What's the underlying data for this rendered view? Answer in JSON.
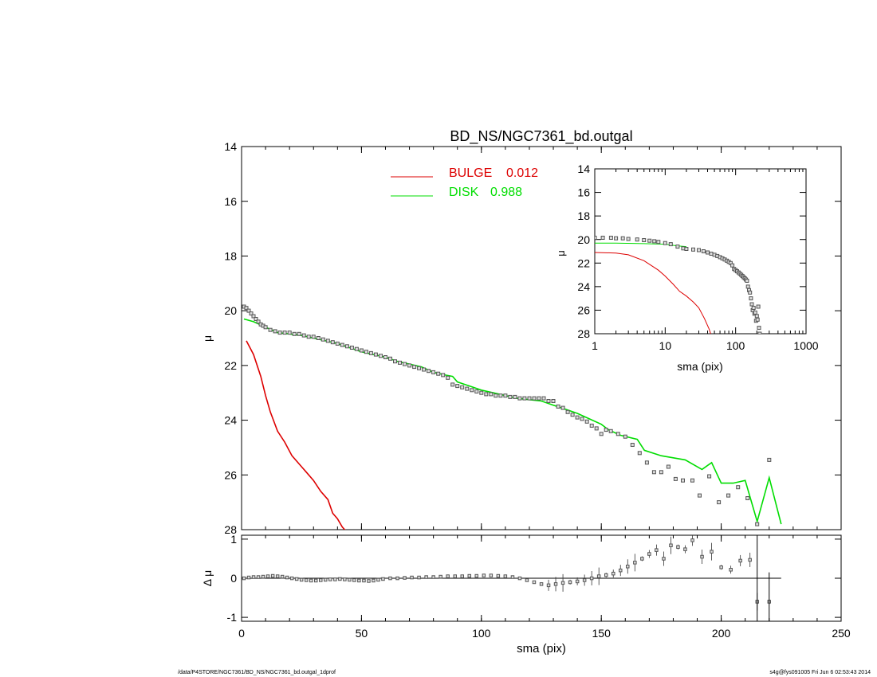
{
  "chart_data": [
    {
      "id": "main",
      "type": "scatter",
      "title": "BD_NS/NGC7361_bd.outgal",
      "xlabel": "",
      "ylabel": "μ",
      "xlim": [
        0,
        250
      ],
      "ylim": [
        28,
        14
      ],
      "y_inverted": true,
      "yticks": [
        14,
        16,
        18,
        20,
        22,
        24,
        26,
        28
      ],
      "xticks": [
        0,
        50,
        100,
        150,
        200,
        250
      ],
      "legend": {
        "placement": "top-center",
        "entries": [
          {
            "label": "BULGE",
            "value": "0.012",
            "color": "#dd0000"
          },
          {
            "label": "DISK",
            "value": "0.988",
            "color": "#00dd00"
          }
        ]
      },
      "series": [
        {
          "name": "BULGE",
          "kind": "line",
          "color": "#dd0000",
          "x": [
            2,
            5,
            8,
            10,
            12,
            15,
            18,
            21,
            24,
            27,
            30,
            33,
            36,
            38,
            40,
            42,
            44,
            46
          ],
          "y": [
            21.1,
            21.6,
            22.4,
            23.1,
            23.7,
            24.4,
            24.8,
            25.3,
            25.6,
            25.9,
            26.2,
            26.6,
            26.9,
            27.4,
            27.6,
            27.9,
            28.1,
            28.3
          ]
        },
        {
          "name": "DISK",
          "kind": "line",
          "color": "#00dd00",
          "x": [
            1,
            5,
            10,
            15,
            20,
            25,
            30,
            35,
            40,
            45,
            50,
            55,
            60,
            65,
            70,
            75,
            80,
            85,
            88,
            90,
            95,
            100,
            105,
            110,
            115,
            120,
            125,
            130,
            135,
            140,
            145,
            150,
            153,
            158,
            165,
            168,
            175,
            185,
            192,
            196,
            200,
            205,
            210,
            215,
            220,
            225
          ],
          "y": [
            20.3,
            20.4,
            20.6,
            20.8,
            20.85,
            20.9,
            21.0,
            21.1,
            21.2,
            21.35,
            21.5,
            21.6,
            21.7,
            21.85,
            21.95,
            22.05,
            22.25,
            22.35,
            22.4,
            22.6,
            22.75,
            22.9,
            23.0,
            23.1,
            23.2,
            23.25,
            23.3,
            23.45,
            23.6,
            23.75,
            23.95,
            24.15,
            24.35,
            24.55,
            24.7,
            25.1,
            25.3,
            25.45,
            25.8,
            25.55,
            26.3,
            26.3,
            26.2,
            27.7,
            26.1,
            27.8
          ]
        },
        {
          "name": "data",
          "kind": "points",
          "color": "#555555",
          "x": [
            1,
            2,
            3,
            4,
            5,
            6,
            7,
            8,
            9,
            10,
            12,
            14,
            16,
            18,
            20,
            22,
            24,
            26,
            28,
            30,
            32,
            34,
            36,
            38,
            40,
            42,
            44,
            46,
            48,
            50,
            52,
            54,
            56,
            58,
            60,
            62,
            64,
            66,
            68,
            70,
            72,
            74,
            76,
            78,
            80,
            82,
            84,
            86,
            88,
            90,
            92,
            94,
            96,
            98,
            100,
            102,
            104,
            106,
            108,
            110,
            112,
            114,
            116,
            118,
            120,
            122,
            124,
            126,
            128,
            130,
            132,
            134,
            136,
            138,
            140,
            142,
            144,
            146,
            148,
            150,
            152,
            154,
            157,
            160,
            163,
            166,
            169,
            172,
            175,
            178,
            181,
            184,
            188,
            191,
            195,
            199,
            203,
            207,
            211,
            215,
            220
          ],
          "y": [
            19.85,
            19.9,
            20.0,
            20.1,
            20.2,
            20.3,
            20.4,
            20.5,
            20.55,
            20.6,
            20.7,
            20.75,
            20.8,
            20.8,
            20.8,
            20.85,
            20.85,
            20.9,
            20.95,
            20.95,
            21.0,
            21.05,
            21.1,
            21.15,
            21.2,
            21.25,
            21.3,
            21.35,
            21.4,
            21.45,
            21.5,
            21.55,
            21.6,
            21.65,
            21.7,
            21.75,
            21.85,
            21.9,
            21.95,
            22.0,
            22.05,
            22.1,
            22.15,
            22.2,
            22.25,
            22.3,
            22.35,
            22.45,
            22.7,
            22.75,
            22.8,
            22.85,
            22.9,
            22.95,
            23.0,
            23.05,
            23.05,
            23.1,
            23.1,
            23.1,
            23.15,
            23.15,
            23.2,
            23.2,
            23.2,
            23.2,
            23.2,
            23.2,
            23.3,
            23.3,
            23.5,
            23.55,
            23.7,
            23.8,
            23.9,
            23.95,
            24.05,
            24.2,
            24.3,
            24.5,
            24.35,
            24.4,
            24.5,
            24.6,
            24.9,
            25.2,
            25.55,
            25.9,
            25.9,
            25.7,
            26.15,
            26.2,
            26.2,
            26.75,
            26.05,
            27.0,
            26.75,
            26.45,
            26.85,
            27.8,
            25.45
          ]
        }
      ]
    },
    {
      "id": "inset",
      "type": "scatter",
      "xlabel": "sma (pix)",
      "ylabel": "μ",
      "xscale": "log",
      "xlim": [
        1,
        1000
      ],
      "ylim": [
        28,
        14
      ],
      "y_inverted": true,
      "yticks": [
        14,
        16,
        18,
        20,
        22,
        24,
        26,
        28
      ],
      "xticks": [
        1,
        10,
        100,
        1000
      ],
      "series": [
        {
          "name": "BULGE",
          "kind": "line",
          "color": "#dd0000",
          "x": [
            1,
            2,
            3,
            5,
            8,
            10,
            13,
            16,
            20,
            25,
            30,
            36,
            42,
            46
          ],
          "y": [
            21.1,
            21.15,
            21.3,
            21.8,
            22.6,
            23.1,
            23.8,
            24.4,
            24.8,
            25.3,
            25.8,
            26.7,
            27.6,
            28.3
          ]
        },
        {
          "name": "DISK",
          "kind": "line",
          "color": "#00dd00",
          "x": [
            1,
            2,
            5,
            10,
            15,
            20
          ],
          "y": [
            20.3,
            20.3,
            20.35,
            20.4,
            20.55,
            20.6
          ]
        },
        {
          "name": "data",
          "kind": "points",
          "color": "#555555",
          "x": [
            1,
            1.3,
            1.7,
            2,
            2.5,
            3,
            4,
            5,
            6,
            7,
            8,
            10,
            12,
            15,
            18,
            20,
            25,
            30,
            35,
            40,
            45,
            50,
            55,
            60,
            65,
            70,
            75,
            80,
            85,
            90,
            95,
            100,
            105,
            110,
            115,
            120,
            125,
            130,
            135,
            140,
            145,
            150,
            155,
            160,
            165,
            170,
            175,
            180,
            185,
            190,
            195,
            200,
            205,
            210,
            215,
            220
          ],
          "y": [
            19.85,
            19.85,
            19.85,
            19.9,
            19.9,
            19.95,
            20.0,
            20.05,
            20.1,
            20.15,
            20.2,
            20.3,
            20.4,
            20.6,
            20.75,
            20.8,
            20.85,
            20.9,
            21.0,
            21.1,
            21.2,
            21.3,
            21.4,
            21.5,
            21.6,
            21.7,
            21.8,
            21.9,
            22.0,
            22.2,
            22.5,
            22.6,
            22.7,
            22.8,
            22.9,
            23.0,
            23.1,
            23.2,
            23.3,
            23.4,
            23.5,
            24.0,
            24.3,
            24.5,
            25.0,
            25.5,
            26.0,
            25.8,
            26.3,
            26.2,
            26.9,
            26.5,
            26.8,
            25.7,
            27.5,
            28.0
          ]
        }
      ]
    },
    {
      "id": "residual",
      "type": "scatter",
      "xlabel": "sma (pix)",
      "ylabel": "Δ μ",
      "xlim": [
        0,
        250
      ],
      "ylim": [
        -1.1,
        1.1
      ],
      "yticks": [
        -1,
        0,
        1
      ],
      "xticks": [
        0,
        50,
        100,
        150,
        200,
        250
      ],
      "reference_line_y": 0,
      "series": [
        {
          "name": "residual",
          "kind": "points",
          "color": "#555555",
          "x": [
            1,
            3,
            5,
            7,
            9,
            11,
            13,
            15,
            17,
            19,
            21,
            23,
            25,
            27,
            29,
            31,
            33,
            35,
            37,
            39,
            41,
            43,
            45,
            47,
            49,
            51,
            53,
            55,
            57,
            59,
            62,
            65,
            68,
            71,
            74,
            77,
            80,
            83,
            86,
            89,
            92,
            95,
            98,
            101,
            104,
            107,
            110,
            113,
            116,
            119,
            122,
            125,
            128,
            131,
            134,
            137,
            140,
            143,
            146,
            149,
            152,
            155,
            158,
            161,
            164,
            167,
            170,
            173,
            176,
            179,
            182,
            185,
            188,
            192,
            196,
            200,
            204,
            208,
            212,
            215,
            220
          ],
          "y": [
            0.0,
            0.02,
            0.03,
            0.03,
            0.04,
            0.05,
            0.06,
            0.05,
            0.04,
            0.02,
            0.0,
            -0.02,
            -0.04,
            -0.05,
            -0.06,
            -0.06,
            -0.05,
            -0.04,
            -0.03,
            -0.03,
            -0.02,
            -0.03,
            -0.04,
            -0.05,
            -0.06,
            -0.06,
            -0.07,
            -0.06,
            -0.04,
            -0.02,
            0.0,
            0.0,
            0.01,
            0.02,
            0.02,
            0.03,
            0.03,
            0.04,
            0.05,
            0.05,
            0.05,
            0.06,
            0.06,
            0.07,
            0.07,
            0.06,
            0.05,
            0.03,
            0.0,
            -0.05,
            -0.1,
            -0.15,
            -0.18,
            -0.15,
            -0.12,
            -0.1,
            -0.08,
            -0.05,
            0.0,
            0.05,
            0.08,
            0.12,
            0.2,
            0.3,
            0.4,
            0.5,
            0.62,
            0.72,
            0.5,
            0.84,
            0.8,
            0.74,
            0.97,
            0.55,
            0.68,
            0.28,
            0.22,
            0.45,
            0.47,
            -0.6,
            -0.6
          ]
        }
      ]
    }
  ],
  "footer": {
    "left": "/data/P4STORE/NGC7361/BD_NS/NGC7361_bd.outgal_1dprof",
    "right": "s4g@fys091005  Fri Jun  6 02:53:43 2014"
  }
}
